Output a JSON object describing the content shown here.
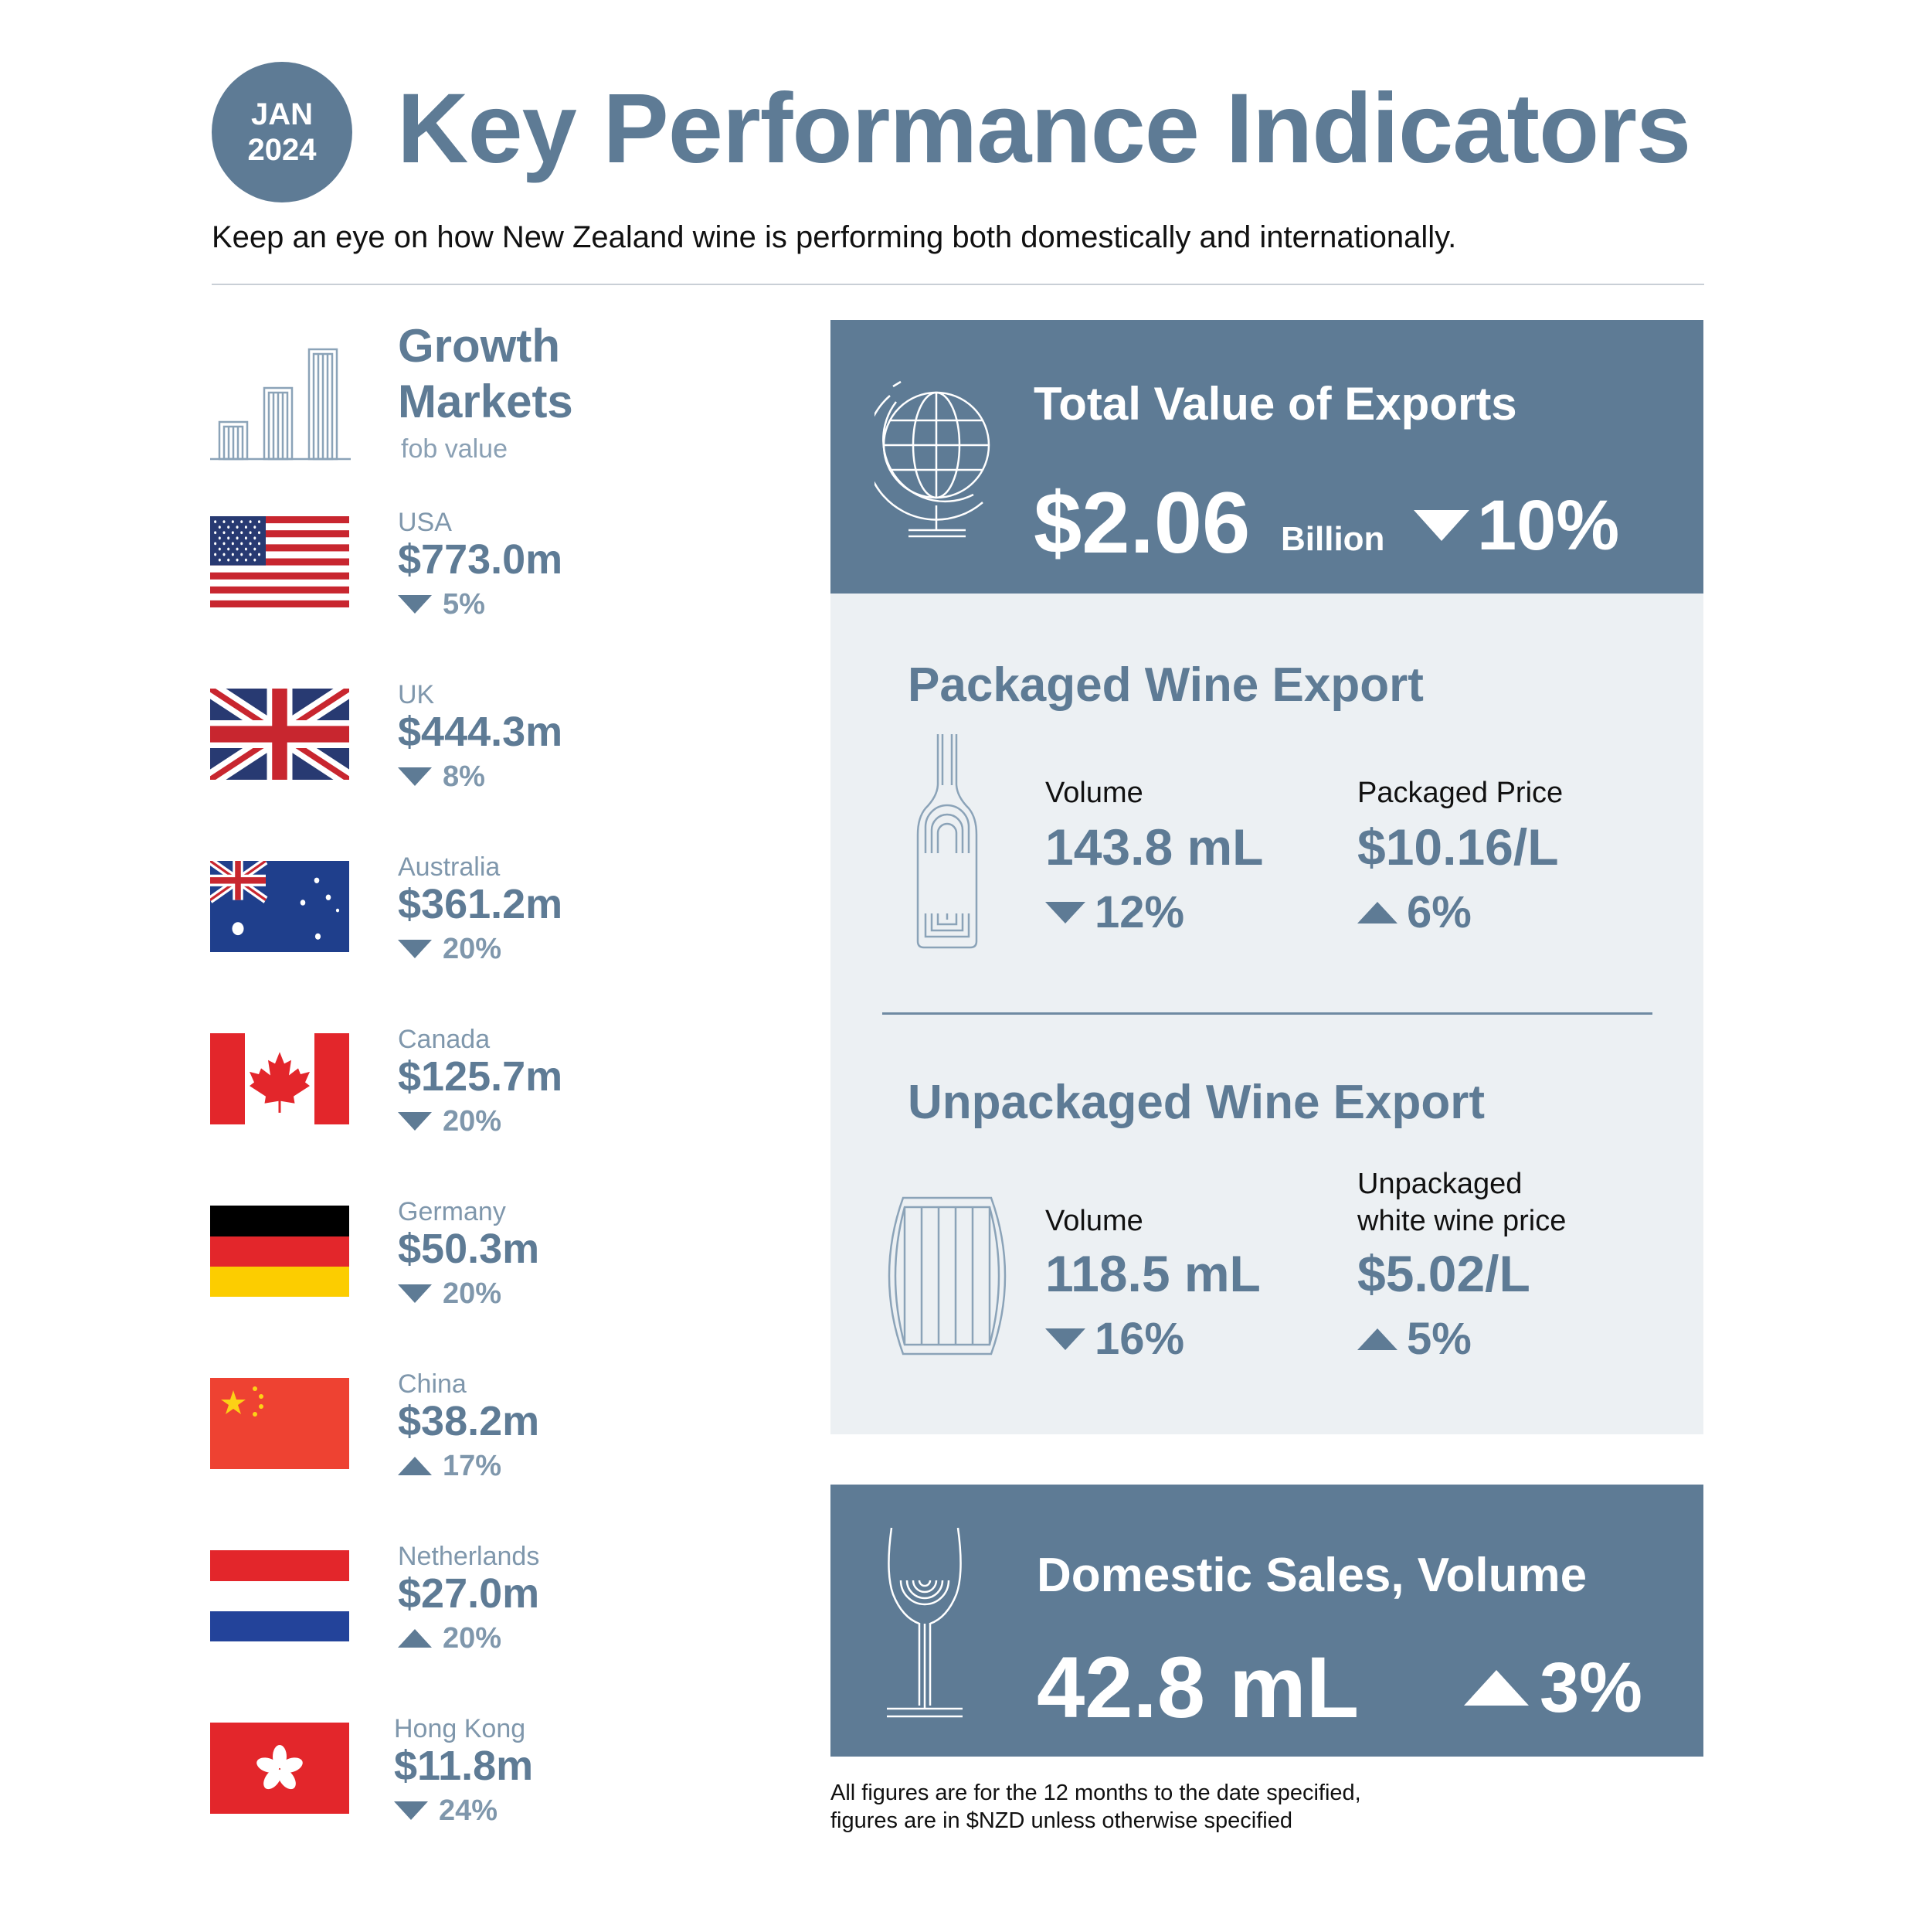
{
  "header": {
    "badge_month": "JAN",
    "badge_year": "2024",
    "title": "Key Performance Indicators",
    "subtitle": "Keep an eye on how New Zealand wine is performing both domestically and internationally."
  },
  "growth_markets": {
    "title_line1": "Growth",
    "title_line2": "Markets",
    "subtitle": "fob value",
    "markets": [
      {
        "name": "USA",
        "value": "$773.0m",
        "change": "5%",
        "direction": "down",
        "flag": "usa-flag"
      },
      {
        "name": "UK",
        "value": "$444.3m",
        "change": "8%",
        "direction": "down",
        "flag": "uk-flag"
      },
      {
        "name": "Australia",
        "value": "$361.2m",
        "change": "20%",
        "direction": "down",
        "flag": "australia-flag"
      },
      {
        "name": "Canada",
        "value": "$125.7m",
        "change": "20%",
        "direction": "down",
        "flag": "canada-flag"
      },
      {
        "name": "Germany",
        "value": "$50.3m",
        "change": "20%",
        "direction": "down",
        "flag": "germany-flag"
      },
      {
        "name": "China",
        "value": "$38.2m",
        "change": "17%",
        "direction": "up",
        "flag": "china-flag"
      },
      {
        "name": "Netherlands",
        "value": "$27.0m",
        "change": "20%",
        "direction": "up",
        "flag": "netherlands-flag"
      },
      {
        "name": "Hong Kong",
        "value": "$11.8m",
        "change": "24%",
        "direction": "down",
        "flag": "hong-kong-flag"
      }
    ]
  },
  "total_exports": {
    "title": "Total Value of Exports",
    "value": "$2.06",
    "unit": "Billion",
    "change": "10%",
    "direction": "down"
  },
  "packaged": {
    "title": "Packaged Wine Export",
    "volume_label": "Volume",
    "volume_value": "143.8 mL",
    "volume_change": "12%",
    "volume_direction": "down",
    "price_label": "Packaged Price",
    "price_value": "$10.16/L",
    "price_change": "6%",
    "price_direction": "up"
  },
  "unpackaged": {
    "title": "Unpackaged Wine Export",
    "volume_label": "Volume",
    "volume_value": "118.5 mL",
    "volume_change": "16%",
    "volume_direction": "down",
    "price_label_line1": "Unpackaged",
    "price_label_line2": "white wine price",
    "price_value": "$5.02/L",
    "price_change": "5%",
    "price_direction": "up"
  },
  "domestic": {
    "title": "Domestic Sales, Volume",
    "value": "42.8 mL",
    "change": "3%",
    "direction": "up"
  },
  "footnote": {
    "line1": "All figures are for the 12 months to the date specified,",
    "line2": "figures are in $NZD unless otherwise specified"
  },
  "colors": {
    "accent": "#5e7b95",
    "panel_light": "#ecf0f3",
    "muted": "#7f97ac"
  }
}
